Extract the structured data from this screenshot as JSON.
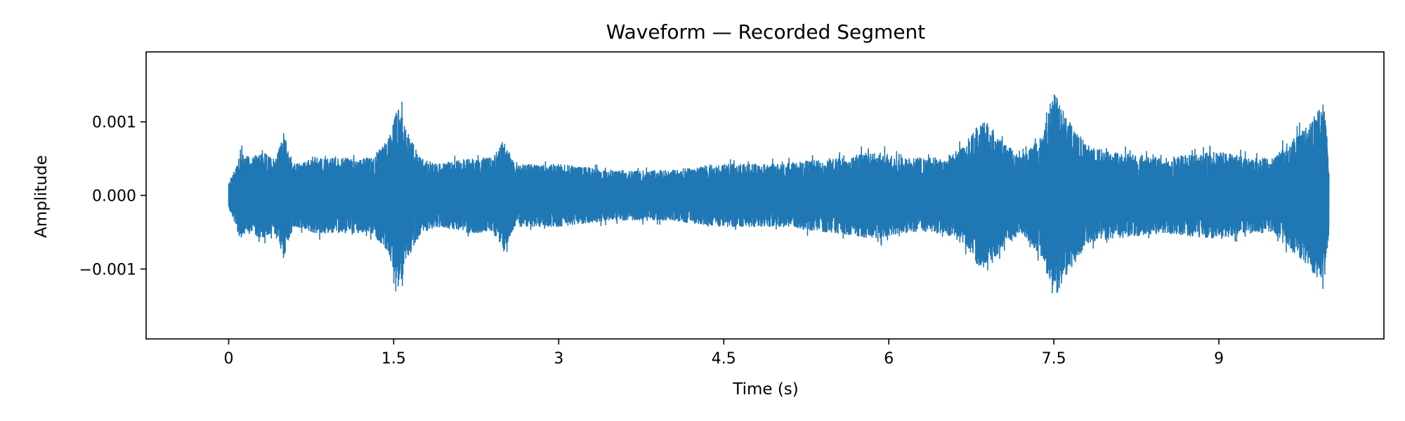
{
  "chart_data": {
    "type": "line",
    "title": "Waveform — Recorded Segment",
    "xlabel": "Time (s)",
    "ylabel": "Amplitude",
    "xlim": [
      -0.75,
      10.5
    ],
    "ylim": [
      -0.00195,
      0.00195
    ],
    "x_ticks": [
      0,
      1.5,
      3,
      4.5,
      6,
      7.5,
      9
    ],
    "x_tick_labels": [
      "0",
      "1.5",
      "3",
      "4.5",
      "6",
      "7.5",
      "9"
    ],
    "y_ticks": [
      -0.001,
      0.0,
      0.001
    ],
    "y_tick_labels": [
      "−0.001",
      "0.000",
      "0.001"
    ],
    "grid": false,
    "legend": "none",
    "line_color": "#1f77b4",
    "series": [
      {
        "duration_s": 10.0,
        "envelope": {
          "t": [
            0,
            0.05,
            0.1,
            0.2,
            0.3,
            0.4,
            0.45,
            0.5,
            0.55,
            0.6,
            0.8,
            1.0,
            1.3,
            1.45,
            1.55,
            1.6,
            1.75,
            1.9,
            2.2,
            2.4,
            2.5,
            2.6,
            3.0,
            3.5,
            4.0,
            4.5,
            5.0,
            5.5,
            5.9,
            6.1,
            6.5,
            6.7,
            6.8,
            6.9,
            7.0,
            7.2,
            7.4,
            7.5,
            7.6,
            7.8,
            8.0,
            8.5,
            9.0,
            9.3,
            9.5,
            9.6,
            9.8,
            9.95,
            10.0
          ],
          "a": [
            0.0002,
            0.0004,
            0.0007,
            0.0006,
            0.0007,
            0.0006,
            0.0007,
            0.001,
            0.0007,
            0.0005,
            0.0006,
            0.0006,
            0.0006,
            0.0009,
            0.0015,
            0.0011,
            0.0006,
            0.0005,
            0.0006,
            0.0006,
            0.0009,
            0.0005,
            0.0005,
            0.0004,
            0.0004,
            0.0005,
            0.0005,
            0.0006,
            0.0007,
            0.0006,
            0.0006,
            0.0008,
            0.0011,
            0.0012,
            0.0009,
            0.0006,
            0.001,
            0.0017,
            0.0013,
            0.0008,
            0.0007,
            0.0006,
            0.0007,
            0.0006,
            0.0006,
            0.0008,
            0.0011,
            0.0015,
            0.0006
          ]
        }
      }
    ]
  }
}
